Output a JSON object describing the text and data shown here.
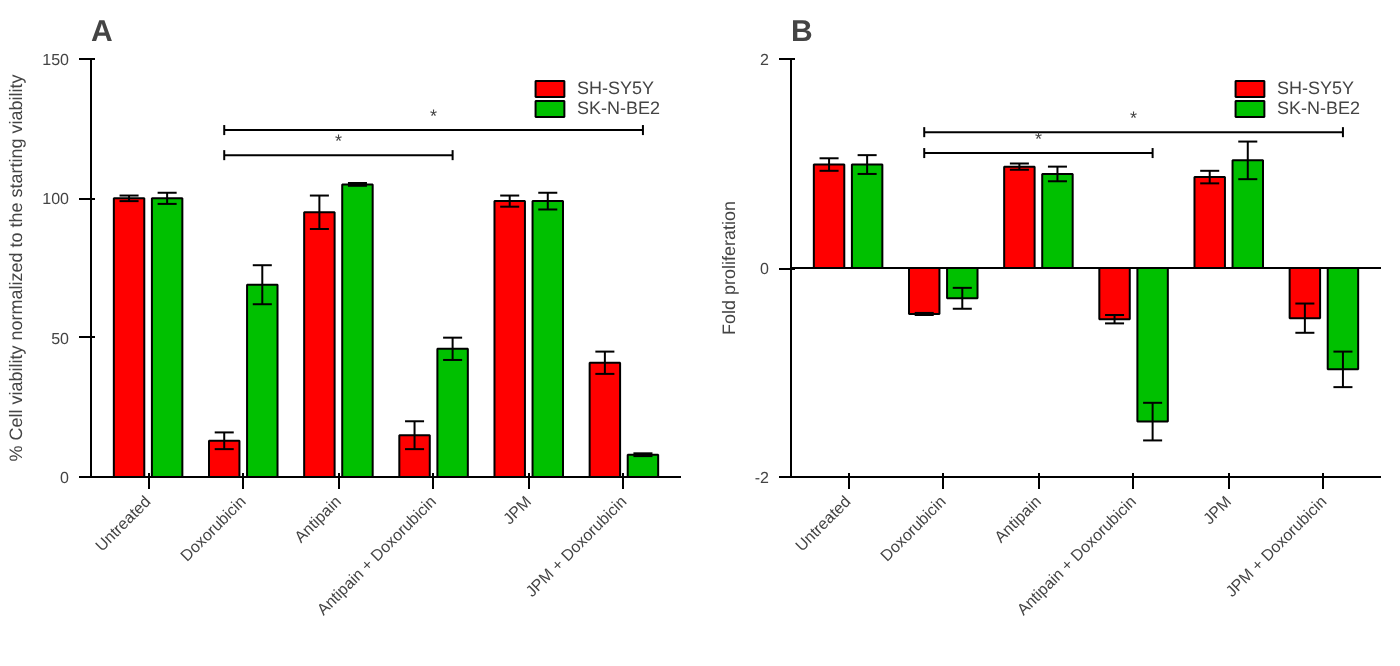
{
  "chart_data": [
    {
      "type": "bar",
      "title": "A",
      "ylabel": "% Cell viability normalized to the starting viability",
      "categories": [
        "Untreated",
        "Doxorubicin",
        "Antipain",
        "Antipain + Doxorubicin",
        "JPM",
        "JPM + Doxorubicin"
      ],
      "series": [
        {
          "name": "SH-SY5Y",
          "color": "#ff0000",
          "values": [
            100,
            13,
            95,
            15,
            99,
            41
          ],
          "errors": [
            1,
            3,
            6,
            5,
            2,
            4
          ]
        },
        {
          "name": "SK-N-BE2",
          "color": "#00c000",
          "values": [
            100,
            69,
            105,
            46,
            99,
            8
          ],
          "errors": [
            2,
            7,
            0.5,
            4,
            3,
            0.5
          ]
        }
      ],
      "ylim": [
        0,
        150
      ],
      "yticks": [
        0,
        50,
        100,
        150
      ],
      "grid": false,
      "legend": "top right",
      "annotations": [
        "*",
        "*"
      ]
    },
    {
      "type": "bar",
      "title": "B",
      "ylabel": "Fold proliferation",
      "categories": [
        "Untreated",
        "Doxorubicin",
        "Antipain",
        "Antipain + Doxorubicin",
        "JPM",
        "JPM + Doxorubicin"
      ],
      "series": [
        {
          "name": "SH-SY5Y",
          "color": "#ff0000",
          "values": [
            0.99,
            -0.44,
            0.97,
            -0.49,
            0.87,
            -0.48
          ],
          "errors": [
            0.06,
            0.01,
            0.03,
            0.04,
            0.06,
            0.14
          ]
        },
        {
          "name": "SK-N-BE2",
          "color": "#00c000",
          "values": [
            0.99,
            -0.29,
            0.9,
            -1.47,
            1.03,
            -0.97
          ],
          "errors": [
            0.09,
            0.1,
            0.07,
            0.18,
            0.18,
            0.17
          ]
        }
      ],
      "ylim": [
        -2,
        2
      ],
      "yticks": [
        -2,
        0,
        2
      ],
      "grid": false,
      "legend": "top right",
      "ref_lines": [
        {
          "axis": "y",
          "value": 0
        }
      ],
      "annotations": [
        "*",
        "*"
      ]
    }
  ]
}
